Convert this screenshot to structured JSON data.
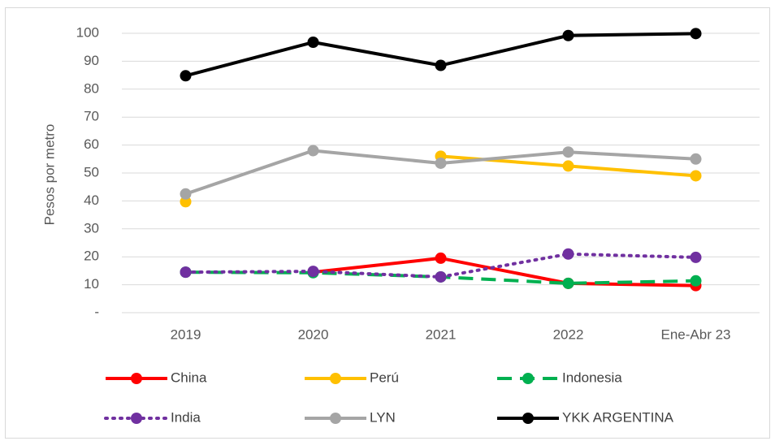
{
  "chart_data": {
    "type": "line",
    "y_label": "Pesos por metro",
    "categories": [
      "2019",
      "2020",
      "2021",
      "2022",
      "Ene-Abr 23"
    ],
    "series": [
      {
        "name": "China",
        "color": "#ff0000",
        "dash": "solid",
        "values": [
          null,
          14.5,
          19.5,
          10.5,
          9.7
        ]
      },
      {
        "name": "Perú",
        "color": "#ffc000",
        "dash": "solid",
        "values": [
          39.7,
          null,
          56,
          52.5,
          49
        ]
      },
      {
        "name": "Indonesia",
        "color": "#00b050",
        "dash": "dashed",
        "values": [
          14.5,
          14.3,
          12.8,
          10.5,
          11.4
        ]
      },
      {
        "name": "India",
        "color": "#7030a0",
        "dash": "dotted",
        "values": [
          14.5,
          14.8,
          12.8,
          21,
          19.8
        ]
      },
      {
        "name": "LYN",
        "color": "#a5a5a5",
        "dash": "solid",
        "values": [
          42.5,
          58,
          53.5,
          57.5,
          55
        ]
      },
      {
        "name": "YKK ARGENTINA",
        "color": "#000000",
        "dash": "solid",
        "values": [
          84.8,
          96.8,
          88.5,
          99.2,
          99.9
        ]
      }
    ],
    "ylim": [
      0,
      100
    ],
    "yticks": [
      {
        "value": 0,
        "label": "-"
      },
      10,
      20,
      30,
      40,
      50,
      60,
      70,
      80,
      90,
      100
    ],
    "grid": true,
    "legend": "bottom"
  }
}
